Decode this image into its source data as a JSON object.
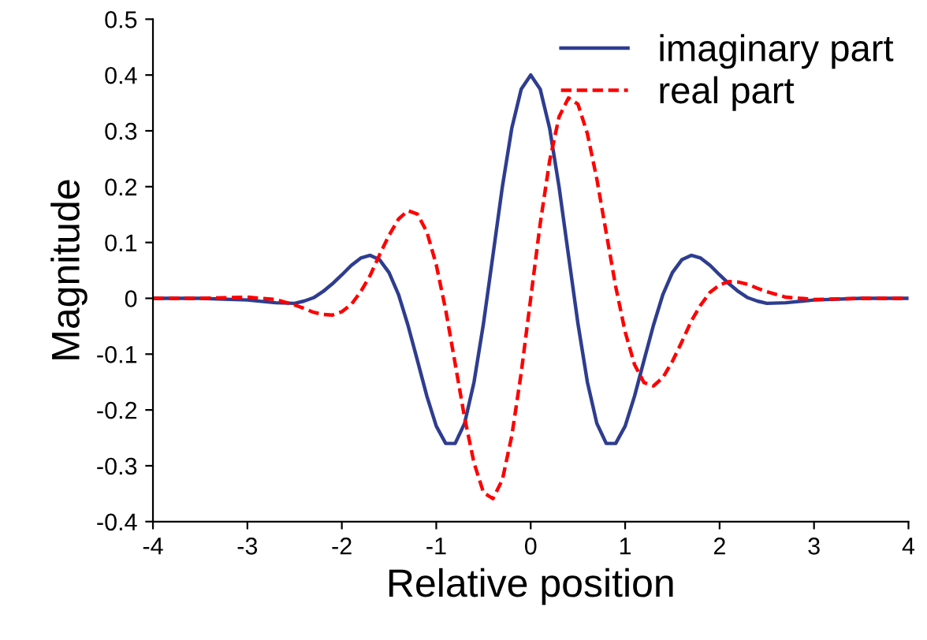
{
  "chart_data": {
    "type": "line",
    "xlabel": "Relative position",
    "ylabel": "Magnitude",
    "x": [
      -4,
      -3.5,
      -3,
      -2.7,
      -2.5,
      -2.4,
      -2.3,
      -2.2,
      -2.1,
      -2,
      -1.9,
      -1.8,
      -1.7,
      -1.6,
      -1.5,
      -1.4,
      -1.3,
      -1.2,
      -1.1,
      -1,
      -0.9,
      -0.8,
      -0.7,
      -0.6,
      -0.5,
      -0.4,
      -0.3,
      -0.2,
      -0.1,
      0,
      0.1,
      0.2,
      0.3,
      0.4,
      0.5,
      0.6,
      0.7,
      0.8,
      0.9,
      1,
      1.1,
      1.2,
      1.3,
      1.4,
      1.5,
      1.6,
      1.7,
      1.8,
      1.9,
      2,
      2.1,
      2.2,
      2.3,
      2.4,
      2.5,
      2.7,
      3,
      3.5,
      4
    ],
    "series": [
      {
        "name": "imaginary part",
        "color": "#2e3d8f",
        "line_style": "solid",
        "values": [
          0,
          0,
          -0.003,
          -0.008,
          -0.009,
          -0.005,
          0.001,
          0.012,
          0.026,
          0.042,
          0.059,
          0.072,
          0.077,
          0.069,
          0.046,
          0.007,
          -0.048,
          -0.111,
          -0.175,
          -0.229,
          -0.26,
          -0.26,
          -0.224,
          -0.15,
          -0.045,
          0.077,
          0.2,
          0.305,
          0.375,
          0.4,
          0.375,
          0.305,
          0.2,
          0.077,
          -0.045,
          -0.15,
          -0.224,
          -0.26,
          -0.26,
          -0.229,
          -0.175,
          -0.111,
          -0.048,
          0.007,
          0.046,
          0.069,
          0.077,
          0.072,
          0.059,
          0.042,
          0.026,
          0.012,
          0.001,
          -0.005,
          -0.009,
          -0.008,
          -0.003,
          0,
          0
        ]
      },
      {
        "name": "real part",
        "color": "#ff0000",
        "line_style": "dashed",
        "values": [
          0,
          0,
          0.002,
          -0.002,
          -0.012,
          -0.018,
          -0.025,
          -0.029,
          -0.03,
          -0.024,
          -0.011,
          0.012,
          0.041,
          0.078,
          0.113,
          0.142,
          0.157,
          0.151,
          0.119,
          0.06,
          -0.021,
          -0.117,
          -0.214,
          -0.295,
          -0.348,
          -0.359,
          -0.325,
          -0.246,
          -0.133,
          0,
          0.133,
          0.246,
          0.325,
          0.359,
          0.348,
          0.295,
          0.214,
          0.117,
          0.021,
          -0.06,
          -0.119,
          -0.151,
          -0.157,
          -0.142,
          -0.113,
          -0.078,
          -0.041,
          -0.012,
          0.011,
          0.024,
          0.03,
          0.029,
          0.025,
          0.018,
          0.012,
          0.002,
          -0.002,
          0,
          0
        ]
      }
    ],
    "xlim": [
      -4,
      4
    ],
    "xticks": [
      -4,
      -3,
      -2,
      -1,
      0,
      1,
      2,
      3,
      4
    ],
    "ylim": [
      -0.4,
      0.5
    ],
    "yticks": [
      -0.4,
      -0.3,
      -0.2,
      -0.1,
      0,
      0.1,
      0.2,
      0.3,
      0.4,
      0.5
    ],
    "grid": false,
    "legend": "top right"
  }
}
